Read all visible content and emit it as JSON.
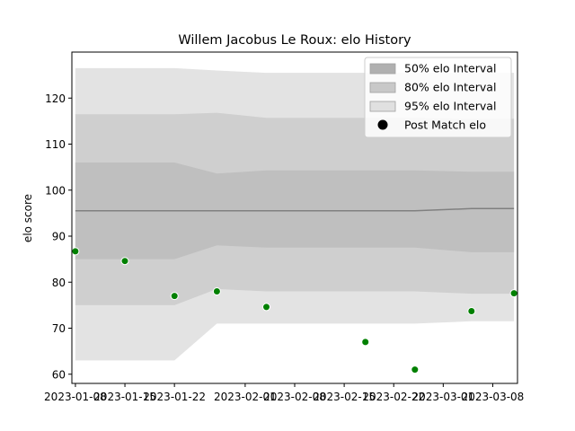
{
  "chart_data": {
    "type": "line",
    "title": "Willem Jacobus Le Roux: elo History",
    "xlabel": "",
    "ylabel": "elo score",
    "ylim": [
      58,
      130
    ],
    "xlim": [
      "2023-01-07T12:00",
      "2023-03-11T12:00"
    ],
    "x_ticks": [
      "2023-01-08",
      "2023-01-15",
      "2023-01-22",
      "2023-02-01",
      "2023-02-08",
      "2023-02-15",
      "2023-02-22",
      "2023-03-01",
      "2023-03-08"
    ],
    "y_ticks": [
      60,
      70,
      80,
      90,
      100,
      110,
      120
    ],
    "grid": false,
    "legend_position": "top-right",
    "x": [
      "2023-01-08",
      "2023-01-15",
      "2023-01-22",
      "2023-01-28",
      "2023-02-04",
      "2023-02-18",
      "2023-02-25",
      "2023-03-05",
      "2023-03-11"
    ],
    "series": [
      {
        "name": "95% elo Interval",
        "kind": "band",
        "color": "#e3e3e3",
        "lower": [
          63,
          63,
          63,
          71,
          71,
          71,
          71,
          71.5,
          71.5
        ],
        "upper": [
          126.5,
          126.5,
          126.5,
          126,
          125.5,
          125.5,
          125.5,
          125.5,
          125.5
        ]
      },
      {
        "name": "80% elo Interval",
        "kind": "band",
        "color": "#cfcfcf",
        "lower": [
          75,
          75,
          75,
          78.5,
          78,
          78,
          78,
          77.5,
          77.5
        ],
        "upper": [
          116.5,
          116.5,
          116.5,
          116.8,
          115.7,
          115.7,
          115.7,
          115.5,
          115.5
        ]
      },
      {
        "name": "50% elo Interval",
        "kind": "band",
        "color": "#bfbfbf",
        "lower": [
          85,
          85,
          85,
          88,
          87.5,
          87.5,
          87.5,
          86.5,
          86.5
        ],
        "upper": [
          106,
          106,
          106,
          103.6,
          104.3,
          104.3,
          104.3,
          104,
          104
        ]
      },
      {
        "name": "mean",
        "kind": "line",
        "color": "#808080",
        "values": [
          95.5,
          95.5,
          95.5,
          95.5,
          95.5,
          95.5,
          95.5,
          96,
          96
        ]
      },
      {
        "name": "Post Match elo",
        "kind": "scatter",
        "color": "#008000",
        "points": [
          {
            "x": "2023-01-08",
            "y": 86.7
          },
          {
            "x": "2023-01-15",
            "y": 84.6
          },
          {
            "x": "2023-01-22",
            "y": 77
          },
          {
            "x": "2023-01-28",
            "y": 78
          },
          {
            "x": "2023-02-04",
            "y": 74.6
          },
          {
            "x": "2023-02-18",
            "y": 67
          },
          {
            "x": "2023-02-25",
            "y": 61
          },
          {
            "x": "2023-03-05",
            "y": 73.7
          },
          {
            "x": "2023-03-11",
            "y": 77.6
          }
        ]
      }
    ],
    "legend": [
      {
        "label": "50% elo Interval",
        "color": "#b0b0b0",
        "marker": "patch"
      },
      {
        "label": "80% elo Interval",
        "color": "#c8c8c8",
        "marker": "patch"
      },
      {
        "label": "95% elo Interval",
        "color": "#e0e0e0",
        "marker": "patch"
      },
      {
        "label": "Post Match elo",
        "color": "#000000",
        "marker": "dot"
      }
    ]
  }
}
